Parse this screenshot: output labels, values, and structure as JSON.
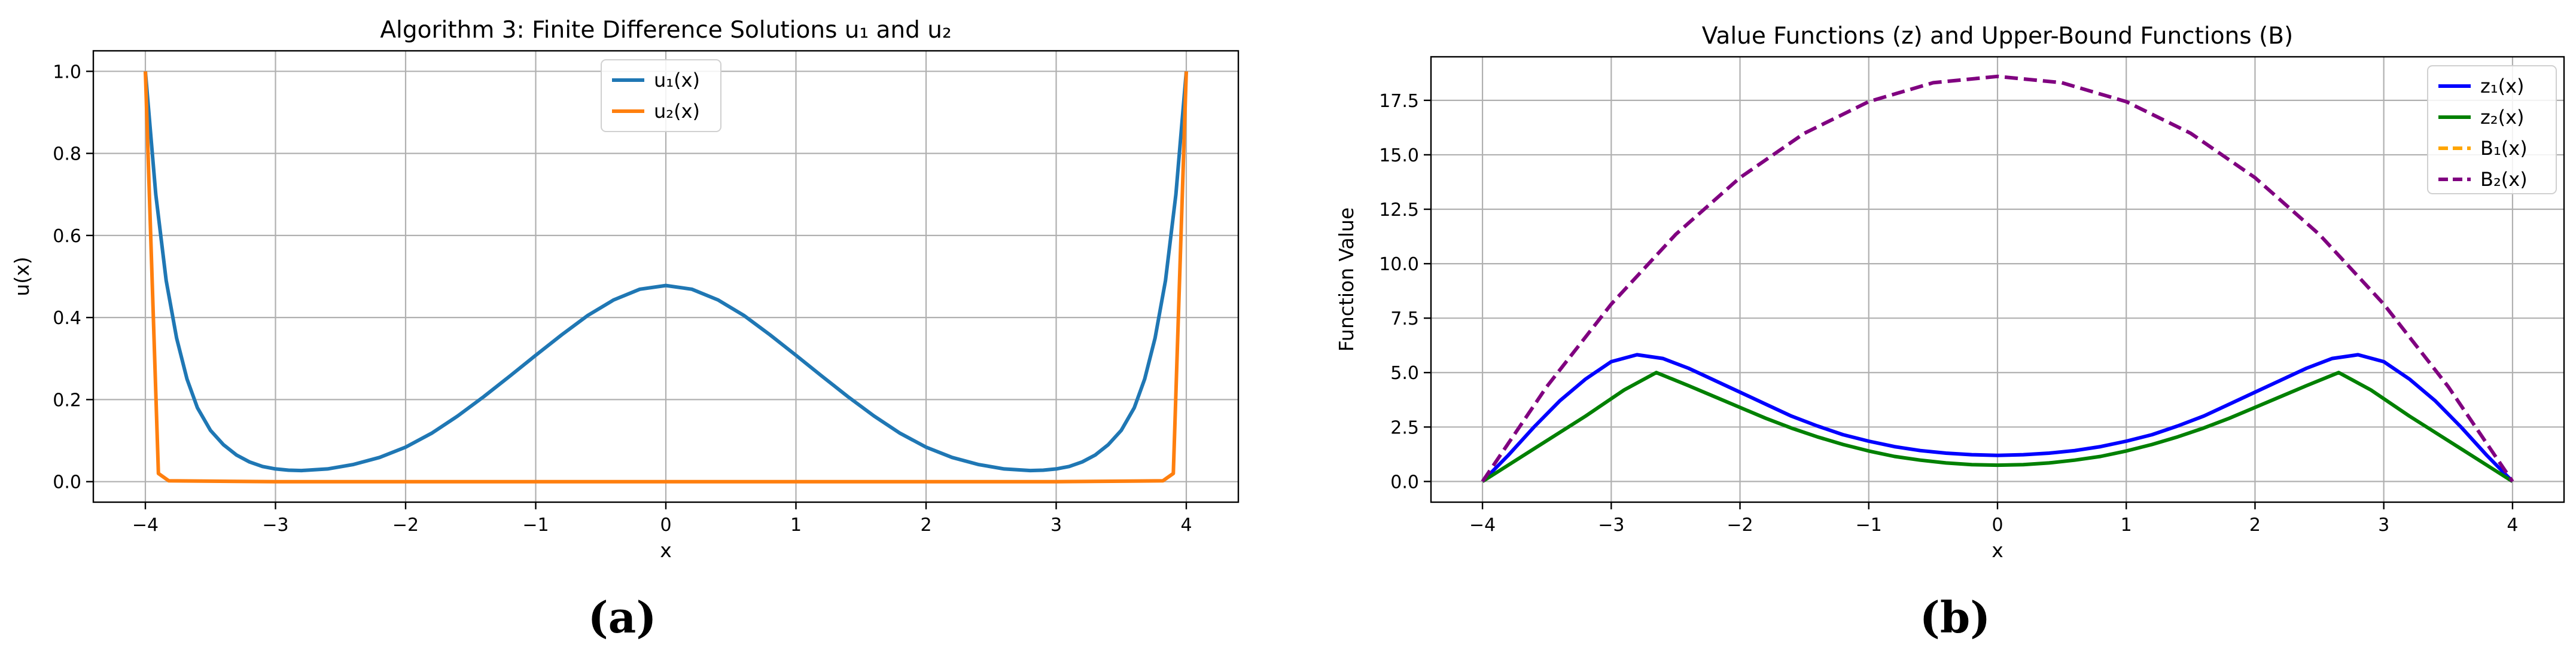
{
  "chart_data": [
    {
      "type": "line",
      "title": "Algorithm 3: Finite Difference Solutions u₁ and u₂",
      "xlabel": "x",
      "ylabel": "u(x)",
      "xlim": [
        -4.4,
        4.4
      ],
      "ylim": [
        -0.05,
        1.05
      ],
      "xticks": [
        -4,
        -3,
        -2,
        -1,
        0,
        1,
        2,
        3,
        4
      ],
      "xtick_labels": [
        "−4",
        "−3",
        "−2",
        "−1",
        "0",
        "1",
        "2",
        "3",
        "4"
      ],
      "yticks": [
        0.0,
        0.2,
        0.4,
        0.6,
        0.8,
        1.0
      ],
      "ytick_labels": [
        "0.0",
        "0.2",
        "0.4",
        "0.6",
        "0.8",
        "1.0"
      ],
      "grid": true,
      "legend_position": "top-center",
      "caption": "(a)",
      "series": [
        {
          "name": "u₁(x)",
          "color": "#1f77b4",
          "dash": "solid",
          "x": [
            -4.0,
            -3.92,
            -3.84,
            -3.76,
            -3.68,
            -3.6,
            -3.5,
            -3.4,
            -3.3,
            -3.2,
            -3.1,
            -3.0,
            -2.9,
            -2.8,
            -2.6,
            -2.4,
            -2.2,
            -2.0,
            -1.8,
            -1.6,
            -1.4,
            -1.2,
            -1.0,
            -0.8,
            -0.6,
            -0.4,
            -0.2,
            0.0,
            0.2,
            0.4,
            0.6,
            0.8,
            1.0,
            1.2,
            1.4,
            1.6,
            1.8,
            2.0,
            2.2,
            2.4,
            2.6,
            2.8,
            2.9,
            3.0,
            3.1,
            3.2,
            3.3,
            3.4,
            3.5,
            3.6,
            3.68,
            3.76,
            3.84,
            3.92,
            4.0
          ],
          "y": [
            1.0,
            0.7,
            0.49,
            0.35,
            0.25,
            0.18,
            0.125,
            0.09,
            0.065,
            0.048,
            0.037,
            0.031,
            0.028,
            0.027,
            0.031,
            0.042,
            0.059,
            0.084,
            0.118,
            0.16,
            0.207,
            0.257,
            0.308,
            0.358,
            0.405,
            0.443,
            0.469,
            0.478,
            0.469,
            0.443,
            0.405,
            0.358,
            0.308,
            0.257,
            0.207,
            0.16,
            0.118,
            0.084,
            0.059,
            0.042,
            0.031,
            0.027,
            0.028,
            0.031,
            0.037,
            0.048,
            0.065,
            0.09,
            0.125,
            0.18,
            0.25,
            0.35,
            0.49,
            0.7,
            1.0
          ]
        },
        {
          "name": "u₂(x)",
          "color": "#ff7f0e",
          "dash": "solid",
          "x": [
            -4.0,
            -3.9,
            -3.82,
            -3.0,
            0.0,
            3.0,
            3.82,
            3.9,
            4.0
          ],
          "y": [
            1.0,
            0.02,
            0.002,
            0.0,
            0.0,
            0.0,
            0.002,
            0.02,
            1.0
          ]
        }
      ]
    },
    {
      "type": "line",
      "title": "Value Functions (z) and Upper-Bound Functions (B)",
      "xlabel": "x",
      "ylabel": "Function Value",
      "xlim": [
        -4.4,
        4.4
      ],
      "ylim": [
        -0.95,
        19.5
      ],
      "xticks": [
        -4,
        -3,
        -2,
        -1,
        0,
        1,
        2,
        3,
        4
      ],
      "xtick_labels": [
        "−4",
        "−3",
        "−2",
        "−1",
        "0",
        "1",
        "2",
        "3",
        "4"
      ],
      "yticks": [
        0.0,
        2.5,
        5.0,
        7.5,
        10.0,
        12.5,
        15.0,
        17.5
      ],
      "ytick_labels": [
        "0.0",
        "2.5",
        "5.0",
        "7.5",
        "10.0",
        "12.5",
        "15.0",
        "17.5"
      ],
      "grid": true,
      "legend_position": "top-right",
      "caption": "(b)",
      "series": [
        {
          "name": "z₁(x)",
          "color": "#0000ff",
          "dash": "solid",
          "x": [
            -4.0,
            -3.8,
            -3.6,
            -3.4,
            -3.2,
            -3.0,
            -2.8,
            -2.6,
            -2.4,
            -2.2,
            -2.0,
            -1.8,
            -1.6,
            -1.4,
            -1.2,
            -1.0,
            -0.8,
            -0.6,
            -0.4,
            -0.2,
            0.0,
            0.2,
            0.4,
            0.6,
            0.8,
            1.0,
            1.2,
            1.4,
            1.6,
            1.8,
            2.0,
            2.2,
            2.4,
            2.6,
            2.8,
            3.0,
            3.2,
            3.4,
            3.6,
            3.8,
            4.0
          ],
          "y": [
            0.0,
            1.2,
            2.5,
            3.7,
            4.7,
            5.5,
            5.82,
            5.65,
            5.2,
            4.65,
            4.1,
            3.55,
            3.0,
            2.55,
            2.15,
            1.85,
            1.6,
            1.42,
            1.3,
            1.23,
            1.2,
            1.23,
            1.3,
            1.42,
            1.6,
            1.85,
            2.15,
            2.55,
            3.0,
            3.55,
            4.1,
            4.65,
            5.2,
            5.65,
            5.82,
            5.5,
            4.7,
            3.7,
            2.5,
            1.2,
            0.0
          ]
        },
        {
          "name": "z₂(x)",
          "color": "#008000",
          "dash": "solid",
          "x": [
            -4.0,
            -3.6,
            -3.2,
            -2.9,
            -2.65,
            -2.4,
            -2.2,
            -2.0,
            -1.8,
            -1.6,
            -1.4,
            -1.2,
            -1.0,
            -0.8,
            -0.6,
            -0.4,
            -0.2,
            0.0,
            0.2,
            0.4,
            0.6,
            0.8,
            1.0,
            1.2,
            1.4,
            1.6,
            1.8,
            2.0,
            2.2,
            2.4,
            2.65,
            2.9,
            3.2,
            3.6,
            4.0
          ],
          "y": [
            0.0,
            1.5,
            3.0,
            4.2,
            5.0,
            4.4,
            3.9,
            3.4,
            2.9,
            2.45,
            2.05,
            1.7,
            1.4,
            1.15,
            0.98,
            0.85,
            0.77,
            0.75,
            0.77,
            0.85,
            0.98,
            1.15,
            1.4,
            1.7,
            2.05,
            2.45,
            2.9,
            3.4,
            3.9,
            4.4,
            5.0,
            4.2,
            3.0,
            1.5,
            0.0
          ]
        },
        {
          "name": "B₁(x)",
          "color": "#ffa500",
          "dash": "dashed",
          "x": [],
          "y": []
        },
        {
          "name": "B₂(x)",
          "color": "#800080",
          "dash": "dashed",
          "x": [
            -4.0,
            -3.5,
            -3.0,
            -2.5,
            -2.0,
            -1.5,
            -1.0,
            -0.5,
            0.0,
            0.5,
            1.0,
            1.5,
            2.0,
            2.5,
            3.0,
            3.5,
            4.0
          ],
          "y": [
            0.0,
            4.36,
            8.14,
            11.34,
            13.95,
            15.99,
            17.44,
            18.31,
            18.6,
            18.31,
            17.44,
            15.99,
            13.95,
            11.34,
            8.14,
            4.36,
            0.0
          ]
        }
      ]
    }
  ]
}
